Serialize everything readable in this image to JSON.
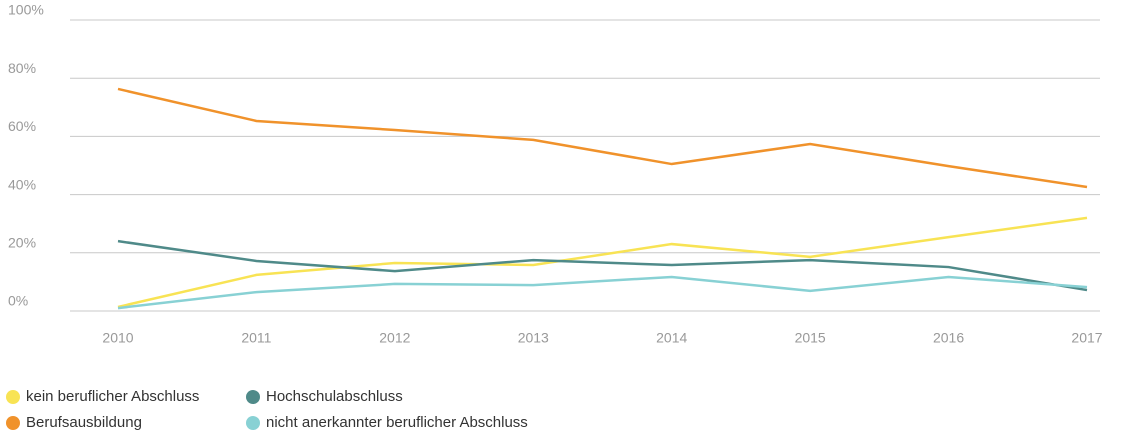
{
  "chart_data": {
    "type": "line",
    "categories": [
      "2010",
      "2011",
      "2012",
      "2013",
      "2014",
      "2015",
      "2016",
      "2017"
    ],
    "series": [
      {
        "name": "kein beruflicher Abschluss",
        "color": "#f8e354",
        "values": [
          1.4,
          12.4,
          16.5,
          15.8,
          23,
          18.6,
          25.4,
          32
        ]
      },
      {
        "name": "Berufsausbildung",
        "color": "#f0922b",
        "values": [
          76.3,
          65.3,
          62.2,
          58.8,
          50.5,
          57.4,
          49.8,
          42.6
        ]
      },
      {
        "name": "Hochschulabschluss",
        "color": "#4f8a89",
        "values": [
          24,
          17.2,
          13.7,
          17.5,
          15.8,
          17.5,
          15.1,
          7.2
        ]
      },
      {
        "name": "nicht anerkannter beruflicher Abschluss",
        "color": "#88d1d4",
        "values": [
          1,
          6.5,
          9.3,
          8.9,
          11.7,
          6.9,
          11.7,
          8.2
        ]
      }
    ],
    "ylim": [
      0,
      100
    ],
    "yticks": [
      {
        "value": 0,
        "label": "0%"
      },
      {
        "value": 20,
        "label": "20%"
      },
      {
        "value": 40,
        "label": "40%"
      },
      {
        "value": 60,
        "label": "60%"
      },
      {
        "value": 80,
        "label": "80%"
      },
      {
        "value": 100,
        "label": "100%"
      }
    ],
    "grid": true
  }
}
